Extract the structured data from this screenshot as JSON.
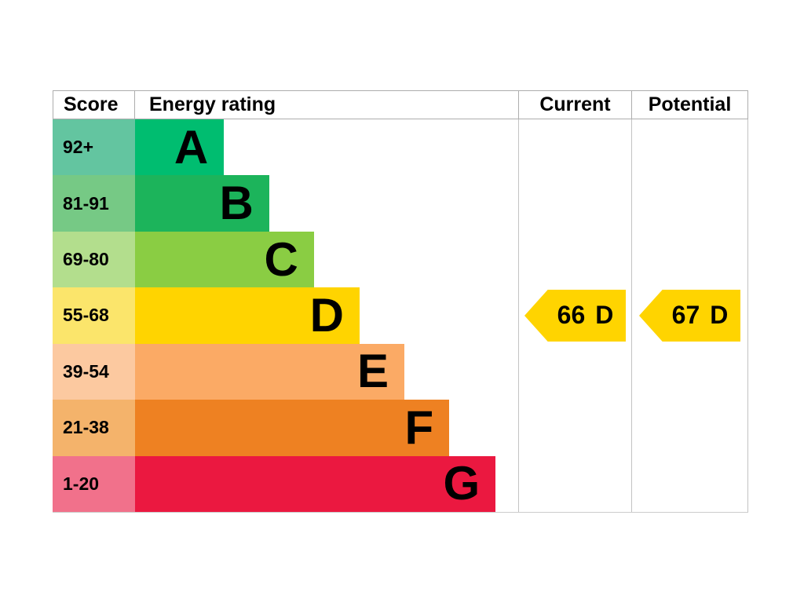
{
  "header": {
    "score": "Score",
    "energy_rating": "Energy rating",
    "current": "Current",
    "potential": "Potential"
  },
  "bands": [
    {
      "letter": "A",
      "score_label": "92+",
      "color": "#00bd70",
      "tint": "#63c5a0",
      "width_pct": 23.2
    },
    {
      "letter": "B",
      "score_label": "81-91",
      "color": "#1cb45b",
      "tint": "#76c985",
      "width_pct": 35.0
    },
    {
      "letter": "C",
      "score_label": "69-80",
      "color": "#8acd43",
      "tint": "#b3de8d",
      "width_pct": 46.7
    },
    {
      "letter": "D",
      "score_label": "55-68",
      "color": "#ffd400",
      "tint": "#fbe56b",
      "width_pct": 58.6
    },
    {
      "letter": "E",
      "score_label": "39-54",
      "color": "#fbaa65",
      "tint": "#fcc9a0",
      "width_pct": 70.3
    },
    {
      "letter": "F",
      "score_label": "21-38",
      "color": "#ee8122",
      "tint": "#f4b36b",
      "width_pct": 82.0
    },
    {
      "letter": "G",
      "score_label": "1-20",
      "color": "#eb1840",
      "tint": "#f1718b",
      "width_pct": 94.1
    }
  ],
  "current": {
    "value": "66",
    "rating": "D",
    "arrow_color": "#ffd400"
  },
  "potential": {
    "value": "67",
    "rating": "D",
    "arrow_color": "#ffd400"
  },
  "chart_data": {
    "type": "bar",
    "title": "Energy rating (EPC band chart)",
    "columns": [
      "Score",
      "Energy rating",
      "Current",
      "Potential"
    ],
    "categories": [
      "A",
      "B",
      "C",
      "D",
      "E",
      "F",
      "G"
    ],
    "score_ranges": [
      "92+",
      "81-91",
      "69-80",
      "55-68",
      "39-54",
      "21-38",
      "1-20"
    ],
    "bar_relative_lengths": [
      23.2,
      35.0,
      46.7,
      58.6,
      70.3,
      82.0,
      94.1
    ],
    "band_colors": [
      "#00bd70",
      "#1cb45b",
      "#8acd43",
      "#ffd400",
      "#fbaa65",
      "#ee8122",
      "#eb1840"
    ],
    "current": {
      "score": 66,
      "rating": "D"
    },
    "potential": {
      "score": 67,
      "rating": "D"
    },
    "legend_position": "none",
    "grid": false
  }
}
